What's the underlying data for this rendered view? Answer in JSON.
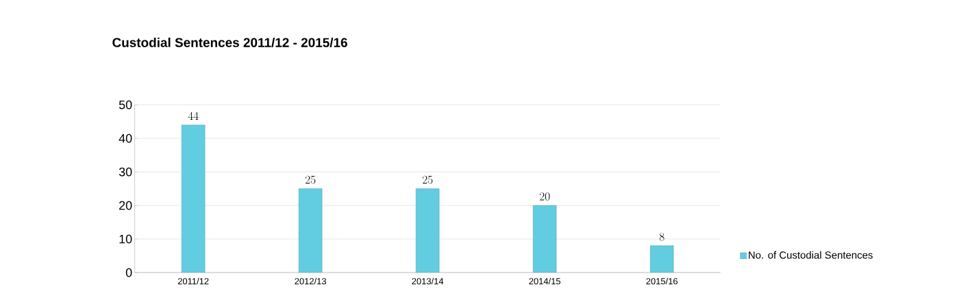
{
  "chart_data": {
    "type": "bar",
    "title": "Custodial Sentences 2011/12 - 2015/16",
    "categories": [
      "2011/12",
      "2012/13",
      "2013/14",
      "2014/15",
      "2015/16"
    ],
    "series": [
      {
        "name": "No. of Custodial Sentences",
        "color": "#62cde0",
        "values": [
          44,
          25,
          25,
          20,
          8
        ]
      }
    ],
    "ylim": [
      0,
      50
    ],
    "yticks": [
      0,
      10,
      20,
      30,
      40,
      50
    ],
    "grid": "y",
    "data_labels": true,
    "legend": "right"
  }
}
